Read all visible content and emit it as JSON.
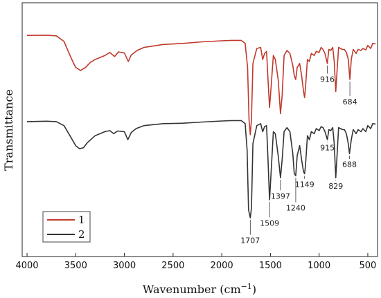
{
  "chart_data": {
    "type": "line",
    "xlabel_main": "Wavenumber (cm",
    "xlabel_sup": "−1",
    "xlabel_end": ")",
    "ylabel": "Transmittance",
    "xlim": [
      4050,
      400
    ],
    "x_reversed": true,
    "xticks": [
      4000,
      3500,
      3000,
      2500,
      2000,
      1500,
      1000,
      500
    ],
    "yticks_shown": false,
    "grid": false,
    "legend_position": "lower-left",
    "series": [
      {
        "name": "1",
        "color": "#c0392b",
        "points": [
          [
            4000,
            0.92
          ],
          [
            3800,
            0.921
          ],
          [
            3700,
            0.918
          ],
          [
            3620,
            0.89
          ],
          [
            3550,
            0.81
          ],
          [
            3500,
            0.76
          ],
          [
            3450,
            0.745
          ],
          [
            3400,
            0.76
          ],
          [
            3350,
            0.785
          ],
          [
            3300,
            0.8
          ],
          [
            3200,
            0.82
          ],
          [
            3150,
            0.835
          ],
          [
            3100,
            0.815
          ],
          [
            3060,
            0.838
          ],
          [
            3000,
            0.832
          ],
          [
            2960,
            0.79
          ],
          [
            2930,
            0.822
          ],
          [
            2870,
            0.845
          ],
          [
            2800,
            0.86
          ],
          [
            2600,
            0.875
          ],
          [
            2400,
            0.88
          ],
          [
            2200,
            0.888
          ],
          [
            2000,
            0.893
          ],
          [
            1900,
            0.895
          ],
          [
            1800,
            0.895
          ],
          [
            1760,
            0.88
          ],
          [
            1735,
            0.76
          ],
          [
            1720,
            0.5
          ],
          [
            1707,
            0.425
          ],
          [
            1695,
            0.5
          ],
          [
            1680,
            0.78
          ],
          [
            1640,
            0.855
          ],
          [
            1600,
            0.86
          ],
          [
            1580,
            0.8
          ],
          [
            1560,
            0.83
          ],
          [
            1540,
            0.84
          ],
          [
            1525,
            0.7
          ],
          [
            1509,
            0.56
          ],
          [
            1495,
            0.65
          ],
          [
            1470,
            0.82
          ],
          [
            1450,
            0.8
          ],
          [
            1420,
            0.7
          ],
          [
            1397,
            0.53
          ],
          [
            1380,
            0.62
          ],
          [
            1360,
            0.82
          ],
          [
            1330,
            0.845
          ],
          [
            1300,
            0.83
          ],
          [
            1270,
            0.77
          ],
          [
            1255,
            0.72
          ],
          [
            1240,
            0.7
          ],
          [
            1225,
            0.76
          ],
          [
            1200,
            0.78
          ],
          [
            1180,
            0.72
          ],
          [
            1160,
            0.64
          ],
          [
            1149,
            0.61
          ],
          [
            1140,
            0.66
          ],
          [
            1120,
            0.8
          ],
          [
            1100,
            0.79
          ],
          [
            1080,
            0.83
          ],
          [
            1050,
            0.82
          ],
          [
            1030,
            0.84
          ],
          [
            1000,
            0.835
          ],
          [
            980,
            0.86
          ],
          [
            960,
            0.85
          ],
          [
            940,
            0.83
          ],
          [
            916,
            0.78
          ],
          [
            900,
            0.85
          ],
          [
            880,
            0.845
          ],
          [
            860,
            0.86
          ],
          [
            845,
            0.79
          ],
          [
            829,
            0.64
          ],
          [
            815,
            0.75
          ],
          [
            800,
            0.86
          ],
          [
            780,
            0.855
          ],
          [
            760,
            0.85
          ],
          [
            740,
            0.85
          ],
          [
            720,
            0.835
          ],
          [
            700,
            0.8
          ],
          [
            684,
            0.7
          ],
          [
            670,
            0.8
          ],
          [
            650,
            0.85
          ],
          [
            620,
            0.83
          ],
          [
            600,
            0.85
          ],
          [
            570,
            0.845
          ],
          [
            550,
            0.855
          ],
          [
            520,
            0.848
          ],
          [
            500,
            0.87
          ],
          [
            470,
            0.855
          ],
          [
            450,
            0.88
          ],
          [
            420,
            0.878
          ]
        ]
      },
      {
        "name": "2",
        "color": "#333333",
        "points": [
          [
            4000,
            0.49
          ],
          [
            3800,
            0.492
          ],
          [
            3700,
            0.49
          ],
          [
            3620,
            0.47
          ],
          [
            3560,
            0.42
          ],
          [
            3500,
            0.37
          ],
          [
            3460,
            0.355
          ],
          [
            3420,
            0.36
          ],
          [
            3380,
            0.385
          ],
          [
            3300,
            0.42
          ],
          [
            3200,
            0.44
          ],
          [
            3150,
            0.445
          ],
          [
            3110,
            0.43
          ],
          [
            3070,
            0.443
          ],
          [
            3000,
            0.44
          ],
          [
            2965,
            0.4
          ],
          [
            2930,
            0.435
          ],
          [
            2880,
            0.455
          ],
          [
            2800,
            0.47
          ],
          [
            2600,
            0.48
          ],
          [
            2400,
            0.482
          ],
          [
            2200,
            0.488
          ],
          [
            2000,
            0.493
          ],
          [
            1900,
            0.495
          ],
          [
            1800,
            0.495
          ],
          [
            1760,
            0.48
          ],
          [
            1740,
            0.35
          ],
          [
            1725,
            0.05
          ],
          [
            1707,
            0.01
          ],
          [
            1695,
            0.06
          ],
          [
            1680,
            0.38
          ],
          [
            1640,
            0.47
          ],
          [
            1600,
            0.48
          ],
          [
            1580,
            0.44
          ],
          [
            1560,
            0.465
          ],
          [
            1540,
            0.47
          ],
          [
            1525,
            0.3
          ],
          [
            1509,
            0.1
          ],
          [
            1495,
            0.22
          ],
          [
            1470,
            0.44
          ],
          [
            1450,
            0.43
          ],
          [
            1420,
            0.32
          ],
          [
            1397,
            0.21
          ],
          [
            1380,
            0.3
          ],
          [
            1360,
            0.44
          ],
          [
            1330,
            0.46
          ],
          [
            1300,
            0.44
          ],
          [
            1270,
            0.33
          ],
          [
            1255,
            0.23
          ],
          [
            1240,
            0.22
          ],
          [
            1225,
            0.32
          ],
          [
            1200,
            0.37
          ],
          [
            1180,
            0.3
          ],
          [
            1160,
            0.24
          ],
          [
            1149,
            0.23
          ],
          [
            1140,
            0.27
          ],
          [
            1120,
            0.42
          ],
          [
            1100,
            0.4
          ],
          [
            1080,
            0.44
          ],
          [
            1050,
            0.43
          ],
          [
            1030,
            0.455
          ],
          [
            1000,
            0.445
          ],
          [
            980,
            0.465
          ],
          [
            960,
            0.46
          ],
          [
            940,
            0.44
          ],
          [
            915,
            0.4
          ],
          [
            900,
            0.45
          ],
          [
            880,
            0.445
          ],
          [
            860,
            0.46
          ],
          [
            845,
            0.38
          ],
          [
            829,
            0.21
          ],
          [
            815,
            0.33
          ],
          [
            800,
            0.46
          ],
          [
            780,
            0.455
          ],
          [
            760,
            0.45
          ],
          [
            740,
            0.45
          ],
          [
            720,
            0.43
          ],
          [
            700,
            0.38
          ],
          [
            688,
            0.33
          ],
          [
            670,
            0.4
          ],
          [
            650,
            0.45
          ],
          [
            620,
            0.43
          ],
          [
            600,
            0.45
          ],
          [
            570,
            0.44
          ],
          [
            550,
            0.455
          ],
          [
            520,
            0.44
          ],
          [
            500,
            0.47
          ],
          [
            470,
            0.455
          ],
          [
            450,
            0.48
          ],
          [
            420,
            0.478
          ]
        ]
      }
    ],
    "annotations": [
      {
        "label": "916",
        "series": 0,
        "x": 916,
        "ly": 0.688
      },
      {
        "label": "684",
        "series": 0,
        "x": 684,
        "ly": 0.576
      },
      {
        "label": "915",
        "series": 1,
        "x": 915,
        "ly": 0.346
      },
      {
        "label": "829",
        "series": 1,
        "x": 829,
        "ly": 0.155
      },
      {
        "label": "688",
        "series": 1,
        "x": 688,
        "ly": 0.263
      },
      {
        "label": "1149",
        "series": 1,
        "x": 1149,
        "ly": 0.163
      },
      {
        "label": "1240",
        "series": 1,
        "x": 1240,
        "ly": 0.047
      },
      {
        "label": "1397",
        "series": 1,
        "x": 1397,
        "ly": 0.106
      },
      {
        "label": "1509",
        "series": 1,
        "x": 1509,
        "ly": -0.029
      },
      {
        "label": "1707",
        "series": 1,
        "x": 1707,
        "ly": -0.116
      }
    ]
  }
}
